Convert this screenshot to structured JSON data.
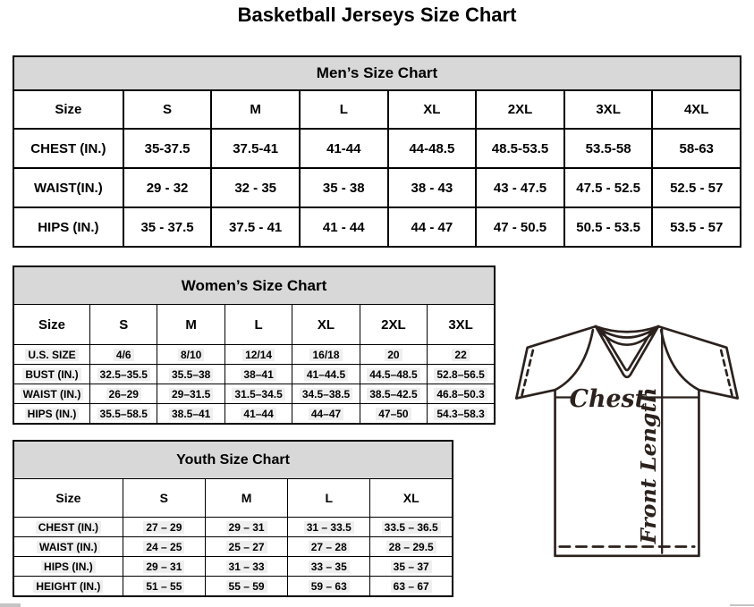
{
  "page": {
    "title": "Basketball Jerseys Size Chart"
  },
  "tables": {
    "men": {
      "title": "Men’s Size Chart",
      "size_header": [
        "Size",
        "S",
        "M",
        "L",
        "XL",
        "2XL",
        "3XL",
        "4XL"
      ],
      "rows": [
        {
          "label": "CHEST (IN.)",
          "values": [
            "35-37.5",
            "37.5-41",
            "41-44",
            "44-48.5",
            "48.5-53.5",
            "53.5-58",
            "58-63"
          ]
        },
        {
          "label": "WAIST(IN.)",
          "values": [
            "29 - 32",
            "32 - 35",
            "35 - 38",
            "38 - 43",
            "43 - 47.5",
            "47.5 - 52.5",
            "52.5 - 57"
          ]
        },
        {
          "label": "HIPS (IN.)",
          "values": [
            "35 - 37.5",
            "37.5 - 41",
            "41 - 44",
            "44 - 47",
            "47 - 50.5",
            "50.5 - 53.5",
            "53.5 - 57"
          ]
        }
      ]
    },
    "women": {
      "title": "Women’s Size Chart",
      "size_header": [
        "Size",
        "S",
        "M",
        "L",
        "XL",
        "2XL",
        "3XL"
      ],
      "rows": [
        {
          "label": "U.S. SIZE",
          "values": [
            "4/6",
            "8/10",
            "12/14",
            "16/18",
            "20",
            "22"
          ]
        },
        {
          "label": "BUST (IN.)",
          "values": [
            "32.5–35.5",
            "35.5–38",
            "38–41",
            "41–44.5",
            "44.5–48.5",
            "52.8–56.5"
          ]
        },
        {
          "label": "WAIST (IN.)",
          "values": [
            "26–29",
            "29–31.5",
            "31.5–34.5",
            "34.5–38.5",
            "38.5–42.5",
            "46.8–50.3"
          ]
        },
        {
          "label": "HIPS (IN.)",
          "values": [
            "35.5–58.5",
            "38.5–41",
            "41–44",
            "44–47",
            "47–50",
            "54.3–58.3"
          ]
        }
      ]
    },
    "youth": {
      "title": "Youth Size Chart",
      "size_header": [
        "Size",
        "S",
        "M",
        "L",
        "XL"
      ],
      "rows": [
        {
          "label": "CHEST (IN.)",
          "values": [
            "27 – 29",
            "29 – 31",
            "31 – 33.5",
            "33.5 – 36.5"
          ]
        },
        {
          "label": "WAIST (IN.)",
          "values": [
            "24 – 25",
            "25 – 27",
            "27 – 28",
            "28 – 29.5"
          ]
        },
        {
          "label": "HIPS (IN.)",
          "values": [
            "29 – 31",
            "31 – 33",
            "33 – 35",
            "35 – 37"
          ]
        },
        {
          "label": "HEIGHT (IN.)",
          "values": [
            "51 – 55",
            "55 – 59",
            "59 – 63",
            "63 – 67"
          ]
        }
      ]
    }
  },
  "diagram": {
    "chest_label": "Chest",
    "front_length_label": "Front Length"
  },
  "colors": {
    "table_header_bg": "#d8d8d8",
    "table_border": "#000000",
    "line_art": "#2b211d"
  }
}
